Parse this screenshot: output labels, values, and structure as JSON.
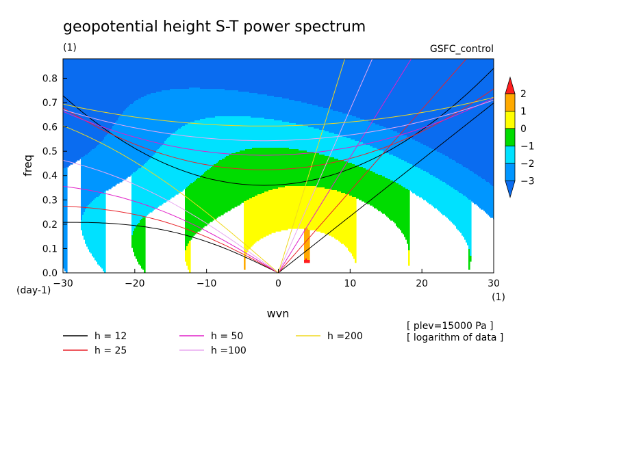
{
  "chart_data": {
    "type": "heatmap",
    "title": "geopotential height S-T power spectrum",
    "units_label": "(1)",
    "source_label": "GSFC_control",
    "xlabel": "wvn",
    "ylabel": "freq",
    "x_units": "(1)",
    "y_units": "(day-1)",
    "xlim": [
      -30,
      30
    ],
    "ylim": [
      0.0,
      0.88
    ],
    "x_ticks": [
      -30,
      -20,
      -10,
      0,
      10,
      20,
      30
    ],
    "x_tick_labels": [
      "−30",
      "−20",
      "−10",
      "0",
      "10",
      "20",
      "30"
    ],
    "y_ticks": [
      0.0,
      0.1,
      0.2,
      0.3,
      0.4,
      0.5,
      0.6,
      0.7,
      0.8
    ],
    "y_tick_labels": [
      "0.0",
      "0.1",
      "0.2",
      "0.3",
      "0.4",
      "0.5",
      "0.6",
      "0.7",
      "0.8"
    ],
    "field": "log10 power",
    "peak": {
      "x": 4,
      "y": 0.05,
      "value": 2.3
    },
    "shading": {
      "levels": [
        -3,
        -2,
        -1,
        0,
        1,
        2
      ],
      "colors": [
        "#0a6cf0",
        "#0096ff",
        "#00e1ff",
        "#00dc00",
        "#ffff00",
        "#ffaa00",
        "#ff1e1e"
      ],
      "colorbar_labels": [
        "2",
        "1",
        "0",
        "−1",
        "−2",
        "−3"
      ]
    },
    "dispersion_curves": [
      {
        "name": "h = 12",
        "h": 12,
        "color": "#000000"
      },
      {
        "name": "h = 25",
        "h": 25,
        "color": "#e8222a"
      },
      {
        "name": "h = 50",
        "h": 50,
        "color": "#e020c8"
      },
      {
        "name": "h =100",
        "h": 100,
        "color": "#e8a8f0"
      },
      {
        "name": "h =200",
        "h": 200,
        "color": "#f0d820"
      }
    ],
    "annotations": [
      "[ plev=15000 Pa ]",
      "[ logarithm of data ]"
    ]
  }
}
